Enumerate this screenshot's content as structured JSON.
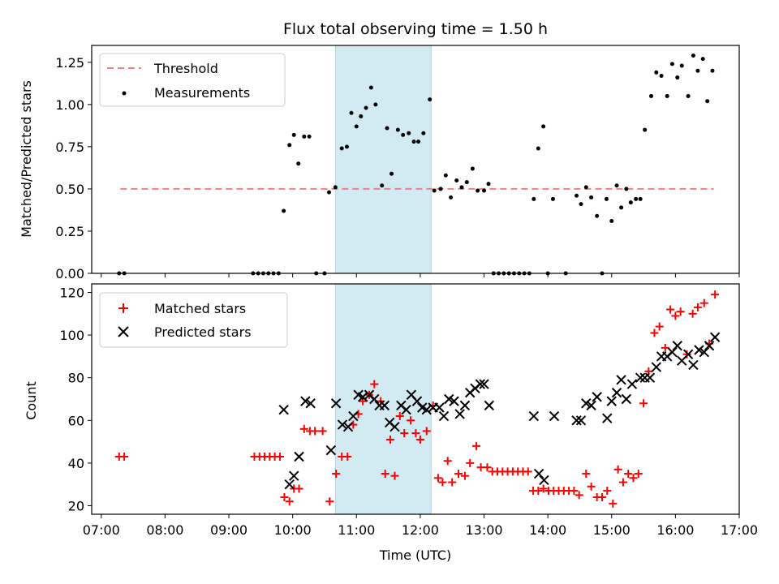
{
  "chart_data": [
    {
      "type": "scatter",
      "title": "Flux total observing time = 1.50 h",
      "xlabel": "",
      "ylabel": "Matched/Predicted stars",
      "xlim": [
        6.85,
        17.0
      ],
      "ylim": [
        0.0,
        1.35
      ],
      "yticks": [
        "0.00",
        "0.25",
        "0.50",
        "0.75",
        "1.00",
        "1.25"
      ],
      "shaded_span": {
        "x": [
          10.67,
          12.17
        ],
        "color": "#add8e6"
      },
      "series": [
        {
          "name": "Threshold",
          "kind": "dashed-line",
          "color": "#f08080",
          "x": [
            7.3,
            16.6
          ],
          "values": [
            0.5,
            0.5
          ]
        },
        {
          "name": "Measurements",
          "kind": "dots",
          "color": "#000000",
          "points": [
            [
              7.28,
              0
            ],
            [
              7.36,
              0
            ],
            [
              9.38,
              0
            ],
            [
              9.46,
              0
            ],
            [
              9.54,
              0
            ],
            [
              9.62,
              0
            ],
            [
              9.7,
              0
            ],
            [
              9.78,
              0
            ],
            [
              9.86,
              0.37
            ],
            [
              9.95,
              0.76
            ],
            [
              10.02,
              0.82
            ],
            [
              10.09,
              0.65
            ],
            [
              10.18,
              0.81
            ],
            [
              10.26,
              0.81
            ],
            [
              10.37,
              0
            ],
            [
              10.5,
              0
            ],
            [
              10.57,
              0.48
            ],
            [
              10.67,
              0.51
            ],
            [
              10.77,
              0.74
            ],
            [
              10.85,
              0.75
            ],
            [
              10.92,
              0.95
            ],
            [
              11.0,
              0.87
            ],
            [
              11.07,
              0.93
            ],
            [
              11.15,
              0.98
            ],
            [
              11.23,
              1.1
            ],
            [
              11.3,
              1.0
            ],
            [
              11.4,
              0.52
            ],
            [
              11.48,
              0.86
            ],
            [
              11.55,
              0.59
            ],
            [
              11.65,
              0.85
            ],
            [
              11.73,
              0.82
            ],
            [
              11.82,
              0.83
            ],
            [
              11.9,
              0.78
            ],
            [
              11.97,
              0.78
            ],
            [
              12.05,
              0.83
            ],
            [
              12.15,
              1.03
            ],
            [
              12.22,
              0.49
            ],
            [
              12.32,
              0.5
            ],
            [
              12.4,
              0.58
            ],
            [
              12.48,
              0.45
            ],
            [
              12.57,
              0.55
            ],
            [
              12.65,
              0.51
            ],
            [
              12.73,
              0.54
            ],
            [
              12.82,
              0.62
            ],
            [
              12.9,
              0.49
            ],
            [
              13.0,
              0.49
            ],
            [
              13.07,
              0.53
            ],
            [
              13.15,
              0
            ],
            [
              13.23,
              0
            ],
            [
              13.31,
              0
            ],
            [
              13.39,
              0
            ],
            [
              13.47,
              0
            ],
            [
              13.55,
              0
            ],
            [
              13.63,
              0
            ],
            [
              13.71,
              0
            ],
            [
              13.78,
              0.44
            ],
            [
              13.85,
              0.74
            ],
            [
              13.93,
              0.87
            ],
            [
              14.0,
              0
            ],
            [
              14.08,
              0.44
            ],
            [
              14.28,
              0
            ],
            [
              14.45,
              0.46
            ],
            [
              14.52,
              0.41
            ],
            [
              14.6,
              0.51
            ],
            [
              14.68,
              0.45
            ],
            [
              14.77,
              0.34
            ],
            [
              14.85,
              0
            ],
            [
              14.92,
              0.44
            ],
            [
              15.0,
              0.31
            ],
            [
              15.08,
              0.52
            ],
            [
              15.15,
              0.39
            ],
            [
              15.23,
              0.5
            ],
            [
              15.3,
              0.42
            ],
            [
              15.38,
              0.44
            ],
            [
              15.45,
              0.44
            ],
            [
              15.52,
              0.85
            ],
            [
              15.62,
              1.05
            ],
            [
              15.7,
              1.19
            ],
            [
              15.78,
              1.17
            ],
            [
              15.87,
              1.05
            ],
            [
              15.95,
              1.24
            ],
            [
              16.03,
              1.16
            ],
            [
              16.1,
              1.23
            ],
            [
              16.2,
              1.05
            ],
            [
              16.28,
              1.29
            ],
            [
              16.35,
              1.2
            ],
            [
              16.43,
              1.27
            ],
            [
              16.5,
              1.02
            ],
            [
              16.58,
              1.2
            ]
          ]
        }
      ],
      "legend": {
        "position": "upper left",
        "entries": [
          "Threshold",
          "Measurements"
        ]
      }
    },
    {
      "type": "scatter",
      "title": "",
      "xlabel": "Time (UTC)",
      "ylabel": "Count",
      "xlim": [
        6.85,
        17.0
      ],
      "ylim": [
        16,
        124
      ],
      "yticks": [
        "20",
        "40",
        "60",
        "80",
        "100",
        "120"
      ],
      "xticks": [
        "07:00",
        "08:00",
        "09:00",
        "10:00",
        "11:00",
        "12:00",
        "13:00",
        "14:00",
        "15:00",
        "16:00",
        "17:00"
      ],
      "shaded_span": {
        "x": [
          10.67,
          12.17
        ],
        "color": "#add8e6"
      },
      "series": [
        {
          "name": "Matched stars",
          "marker": "plus",
          "color": "#ff0000",
          "points": [
            [
              7.28,
              43
            ],
            [
              7.36,
              43
            ],
            [
              9.4,
              43
            ],
            [
              9.48,
              43
            ],
            [
              9.56,
              43
            ],
            [
              9.64,
              43
            ],
            [
              9.72,
              43
            ],
            [
              9.8,
              43
            ],
            [
              9.87,
              24
            ],
            [
              9.95,
              22
            ],
            [
              10.02,
              28
            ],
            [
              10.1,
              28
            ],
            [
              10.18,
              56
            ],
            [
              10.27,
              55
            ],
            [
              10.35,
              55
            ],
            [
              10.47,
              55
            ],
            [
              10.58,
              22
            ],
            [
              10.68,
              35
            ],
            [
              10.77,
              43
            ],
            [
              10.86,
              43
            ],
            [
              10.95,
              58
            ],
            [
              11.03,
              63
            ],
            [
              11.1,
              69
            ],
            [
              11.2,
              72
            ],
            [
              11.28,
              77
            ],
            [
              11.38,
              69
            ],
            [
              11.45,
              35
            ],
            [
              11.53,
              51
            ],
            [
              11.6,
              34
            ],
            [
              11.68,
              62
            ],
            [
              11.75,
              54
            ],
            [
              11.85,
              60
            ],
            [
              11.93,
              54
            ],
            [
              12.0,
              51
            ],
            [
              12.1,
              55
            ],
            [
              12.2,
              67
            ],
            [
              12.28,
              33
            ],
            [
              12.35,
              31
            ],
            [
              12.43,
              41
            ],
            [
              12.5,
              31
            ],
            [
              12.6,
              35
            ],
            [
              12.7,
              34
            ],
            [
              12.78,
              40
            ],
            [
              12.88,
              48
            ],
            [
              12.95,
              38
            ],
            [
              13.05,
              38
            ],
            [
              13.13,
              36
            ],
            [
              13.21,
              36
            ],
            [
              13.29,
              36
            ],
            [
              13.37,
              36
            ],
            [
              13.45,
              36
            ],
            [
              13.53,
              36
            ],
            [
              13.61,
              36
            ],
            [
              13.69,
              36
            ],
            [
              13.77,
              27
            ],
            [
              13.85,
              27
            ],
            [
              13.93,
              28
            ],
            [
              14.01,
              27
            ],
            [
              14.09,
              27
            ],
            [
              14.17,
              27
            ],
            [
              14.25,
              27
            ],
            [
              14.33,
              27
            ],
            [
              14.41,
              27
            ],
            [
              14.49,
              25
            ],
            [
              14.6,
              35
            ],
            [
              14.68,
              29
            ],
            [
              14.77,
              24
            ],
            [
              14.85,
              24
            ],
            [
              14.93,
              27
            ],
            [
              15.02,
              21
            ],
            [
              15.1,
              37
            ],
            [
              15.18,
              31
            ],
            [
              15.26,
              35
            ],
            [
              15.34,
              33
            ],
            [
              15.42,
              35
            ],
            [
              15.5,
              68
            ],
            [
              15.58,
              83
            ],
            [
              15.67,
              101
            ],
            [
              15.75,
              104
            ],
            [
              15.84,
              94
            ],
            [
              15.92,
              112
            ],
            [
              16.0,
              109
            ],
            [
              16.08,
              111
            ],
            [
              16.18,
              91
            ],
            [
              16.27,
              110
            ],
            [
              16.35,
              113
            ],
            [
              16.45,
              115
            ],
            [
              16.53,
              96
            ],
            [
              16.62,
              119
            ]
          ]
        },
        {
          "name": "Predicted stars",
          "marker": "x",
          "color": "#000000",
          "points": [
            [
              9.86,
              65
            ],
            [
              9.95,
              30
            ],
            [
              10.02,
              34
            ],
            [
              10.1,
              43
            ],
            [
              10.2,
              69
            ],
            [
              10.28,
              68
            ],
            [
              10.6,
              46
            ],
            [
              10.68,
              68
            ],
            [
              10.78,
              58
            ],
            [
              10.87,
              57
            ],
            [
              10.95,
              62
            ],
            [
              11.03,
              72
            ],
            [
              11.1,
              71
            ],
            [
              11.2,
              72
            ],
            [
              11.28,
              70
            ],
            [
              11.36,
              67
            ],
            [
              11.44,
              67
            ],
            [
              11.52,
              59
            ],
            [
              11.6,
              57
            ],
            [
              11.7,
              67
            ],
            [
              11.78,
              65
            ],
            [
              11.86,
              72
            ],
            [
              11.95,
              69
            ],
            [
              12.03,
              66
            ],
            [
              12.1,
              65
            ],
            [
              12.2,
              66
            ],
            [
              12.3,
              66
            ],
            [
              12.37,
              62
            ],
            [
              12.45,
              70
            ],
            [
              12.53,
              69
            ],
            [
              12.62,
              63
            ],
            [
              12.7,
              67
            ],
            [
              12.78,
              73
            ],
            [
              12.86,
              75
            ],
            [
              12.94,
              77
            ],
            [
              13.0,
              77
            ],
            [
              13.08,
              67
            ],
            [
              13.78,
              62
            ],
            [
              13.86,
              35
            ],
            [
              13.94,
              32
            ],
            [
              14.1,
              62
            ],
            [
              14.45,
              60
            ],
            [
              14.52,
              60
            ],
            [
              14.6,
              68
            ],
            [
              14.68,
              67
            ],
            [
              14.77,
              71
            ],
            [
              14.93,
              61
            ],
            [
              15.0,
              69
            ],
            [
              15.08,
              73
            ],
            [
              15.15,
              79
            ],
            [
              15.23,
              70
            ],
            [
              15.32,
              77
            ],
            [
              15.45,
              80
            ],
            [
              15.52,
              80
            ],
            [
              15.6,
              80
            ],
            [
              15.7,
              85
            ],
            [
              15.78,
              90
            ],
            [
              15.87,
              90
            ],
            [
              15.95,
              92
            ],
            [
              16.03,
              95
            ],
            [
              16.1,
              88
            ],
            [
              16.2,
              91
            ],
            [
              16.28,
              86
            ],
            [
              16.37,
              93
            ],
            [
              16.45,
              92
            ],
            [
              16.53,
              95
            ],
            [
              16.62,
              99
            ]
          ]
        }
      ],
      "legend": {
        "position": "upper left",
        "entries": [
          "Matched stars",
          "Predicted stars"
        ]
      }
    }
  ]
}
